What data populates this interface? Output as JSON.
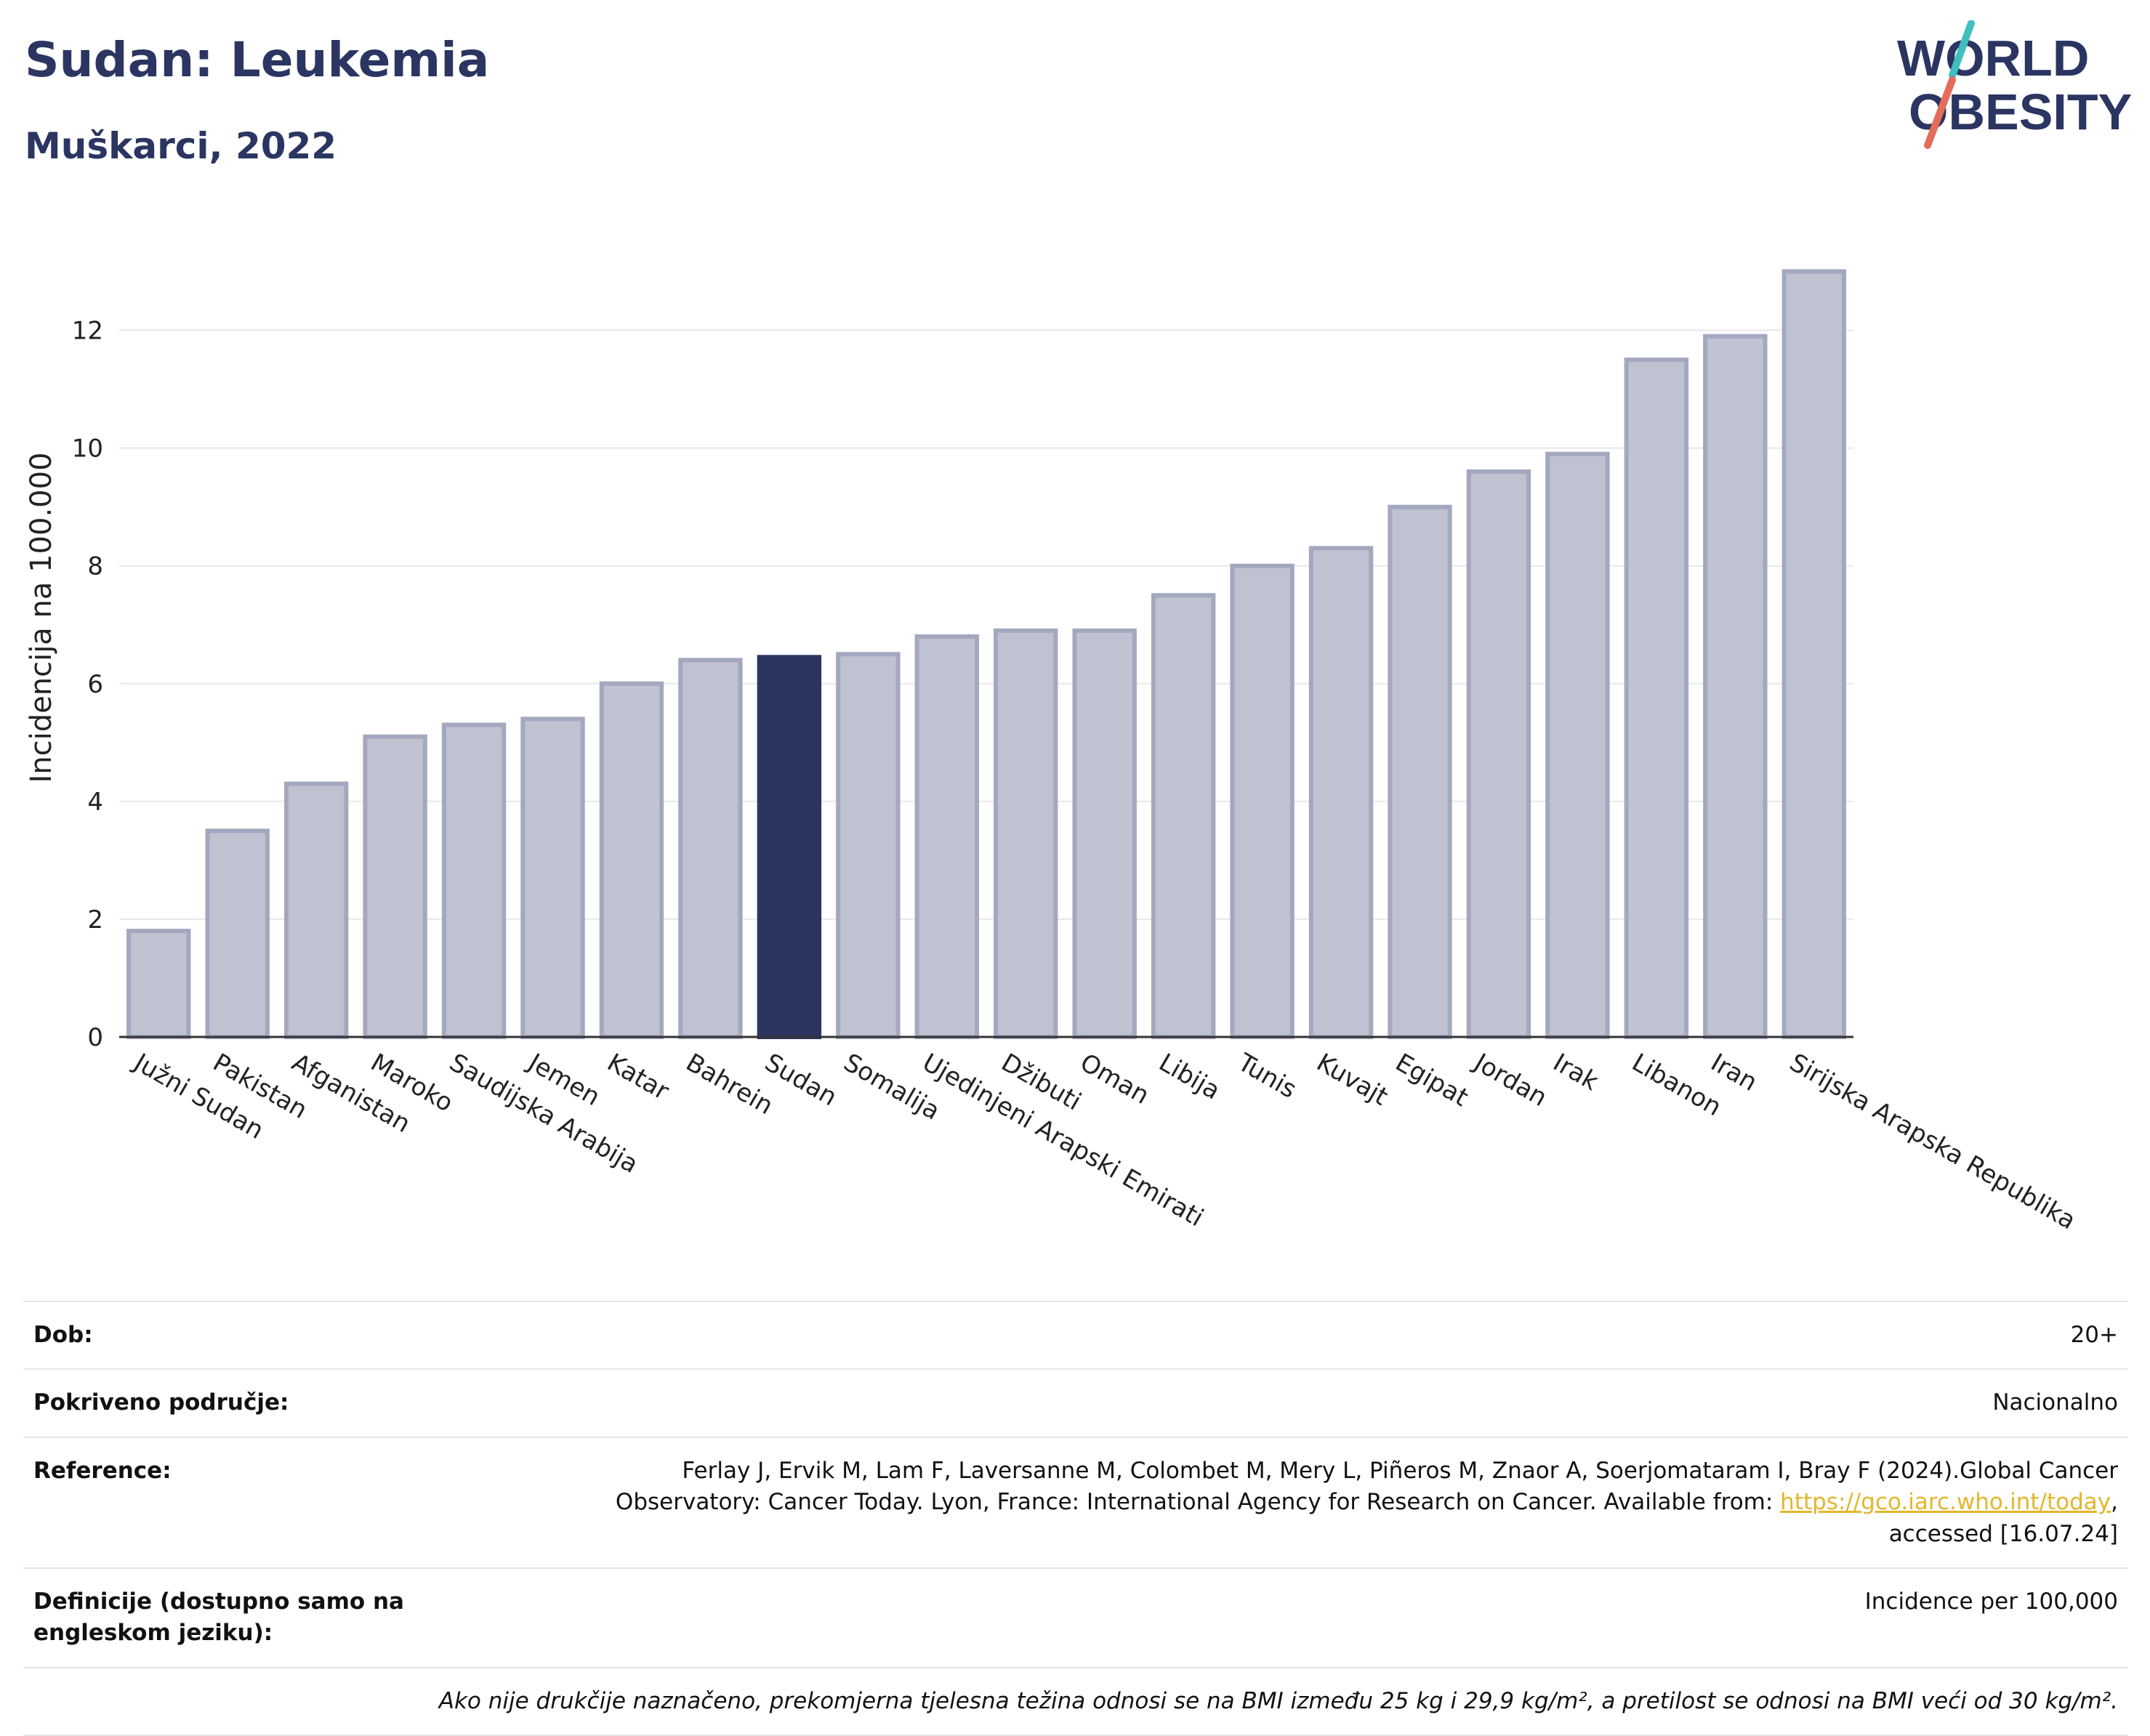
{
  "title": "Sudan: Leukemia",
  "subtitle": "Muškarci, 2022",
  "logo": {
    "line1": "WORLD",
    "line2": "OBESITY",
    "accent_colors": [
      "#3fbfbf",
      "#e46c5a"
    ]
  },
  "colors": {
    "highlight": "#2b3561",
    "bar_fill": "#bfc2d0",
    "bar_stroke": "#a3a8bf",
    "grid": "#e8e8e8",
    "title": "#2b3561"
  },
  "chart_data": {
    "type": "bar",
    "title": "Sudan: Leukemia",
    "subtitle": "Muškarci, 2022",
    "ylabel": "Incidencija na 100.000",
    "xlabel": "",
    "ylim": [
      0,
      13.5
    ],
    "yticks": [
      0,
      2,
      4,
      6,
      8,
      10,
      12
    ],
    "grid": true,
    "highlight": "Sudan",
    "categories": [
      "Južni Sudan",
      "Pakistan",
      "Afganistan",
      "Maroko",
      "Saudijska Arabija",
      "Jemen",
      "Katar",
      "Bahrein",
      "Sudan",
      "Somalija",
      "Ujedinjeni Arapski Emirati",
      "Džibuti",
      "Oman",
      "Libija",
      "Tunis",
      "Kuvajt",
      "Egipat",
      "Jordan",
      "Irak",
      "Libanon",
      "Iran",
      "Sirijska Arapska Republika"
    ],
    "values": [
      1.8,
      3.5,
      4.3,
      5.1,
      5.3,
      5.4,
      6.0,
      6.4,
      6.45,
      6.5,
      6.8,
      6.9,
      6.9,
      7.5,
      8.0,
      8.3,
      9.0,
      9.6,
      9.9,
      11.5,
      11.9,
      13.0
    ]
  },
  "info": {
    "rows": [
      {
        "label": "Dob:",
        "value": "20+"
      },
      {
        "label": "Pokriveno područje:",
        "value": "Nacionalno"
      },
      {
        "label": "Definicije (dostupno samo na engleskom jeziku):",
        "value": "Incidence per 100,000"
      }
    ],
    "reference_label": "Reference:",
    "reference_text": "Ferlay J, Ervik M, Lam F, Laversanne M, Colombet M, Mery L, Piñeros M, Znaor A, Soerjomataram I, Bray F (2024).Global Cancer Observatory: Cancer Today. Lyon, France: International Agency for Research on Cancer. Available from: ",
    "reference_link": "https://gco.iarc.who.int/today",
    "reference_suffix": ", accessed [16.07.24]",
    "footnote": "Ako nije drukčije naznačeno, prekomjerna tjelesna težina odnosi se na BMI između 25 kg i 29,9 kg/m², a pretilost se odnosi na BMI veći od 30 kg/m²."
  }
}
